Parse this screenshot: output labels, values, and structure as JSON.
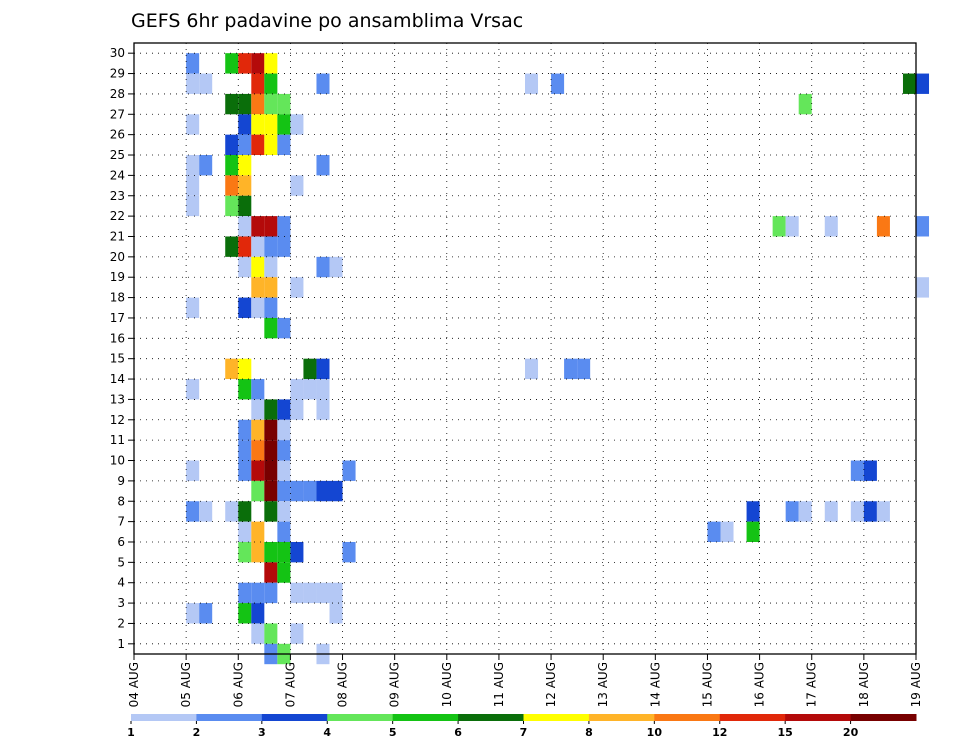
{
  "chart_data": {
    "type": "heatmap",
    "title": "GEFS 6hr padavine po ansamblima Vrsac",
    "xlabel": "",
    "ylabel": "",
    "x_tick_labels": [
      "04 AUG",
      "05 AUG",
      "06 AUG",
      "07 AUG",
      "08 AUG",
      "09 AUG",
      "10 AUG",
      "11 AUG",
      "12 AUG",
      "13 AUG",
      "14 AUG",
      "15 AUG",
      "16 AUG",
      "17 AUG",
      "18 AUG",
      "19 AUG"
    ],
    "x_unit": "6-hour step (4 per day)",
    "xlim_steps": [
      0,
      60
    ],
    "ylim": [
      0,
      30
    ],
    "y_ticks": [
      1,
      2,
      3,
      4,
      5,
      6,
      7,
      8,
      9,
      10,
      11,
      12,
      13,
      14,
      15,
      16,
      17,
      18,
      19,
      20,
      21,
      22,
      23,
      24,
      25,
      26,
      27,
      28,
      29,
      30
    ],
    "grid": true,
    "colorbar": {
      "position": "bottom",
      "labels": [
        "1",
        "2",
        "3",
        "4",
        "5",
        "6",
        "7",
        "8",
        "10",
        "12",
        "15",
        "20"
      ],
      "colors": [
        "#b4c8f5",
        "#5a8cf0",
        "#1446d2",
        "#64e65a",
        "#14c314",
        "#0a6e0a",
        "#ffff00",
        "#ffb428",
        "#fa7814",
        "#e1280a",
        "#b40a0a",
        "#780000"
      ]
    },
    "cells": [
      {
        "member": 30,
        "cells": [
          [
            4,
            1
          ],
          [
            7,
            4
          ],
          [
            8,
            9
          ],
          [
            9,
            10
          ],
          [
            10,
            6
          ]
        ]
      },
      {
        "member": 29,
        "cells": [
          [
            4,
            0
          ],
          [
            5,
            0
          ],
          [
            9,
            9
          ],
          [
            10,
            4
          ],
          [
            14,
            1
          ],
          [
            30,
            0
          ],
          [
            32,
            1
          ],
          [
            59,
            5
          ],
          [
            60,
            2
          ]
        ]
      },
      {
        "member": 28,
        "cells": [
          [
            7,
            5
          ],
          [
            8,
            5
          ],
          [
            9,
            8
          ],
          [
            10,
            3
          ],
          [
            11,
            3
          ],
          [
            51,
            3
          ]
        ]
      },
      {
        "member": 27,
        "cells": [
          [
            4,
            0
          ],
          [
            8,
            2
          ],
          [
            9,
            6
          ],
          [
            10,
            6
          ],
          [
            11,
            4
          ],
          [
            12,
            0
          ]
        ]
      },
      {
        "member": 26,
        "cells": [
          [
            7,
            2
          ],
          [
            8,
            1
          ],
          [
            9,
            9
          ],
          [
            10,
            6
          ],
          [
            11,
            1
          ]
        ]
      },
      {
        "member": 25,
        "cells": [
          [
            4,
            0
          ],
          [
            5,
            1
          ],
          [
            7,
            4
          ],
          [
            8,
            6
          ],
          [
            14,
            1
          ]
        ]
      },
      {
        "member": 24,
        "cells": [
          [
            4,
            0
          ],
          [
            7,
            8
          ],
          [
            8,
            7
          ],
          [
            12,
            0
          ]
        ]
      },
      {
        "member": 23,
        "cells": [
          [
            4,
            0
          ],
          [
            7,
            3
          ],
          [
            8,
            5
          ]
        ]
      },
      {
        "member": 22,
        "cells": [
          [
            8,
            0
          ],
          [
            9,
            10
          ],
          [
            10,
            10
          ],
          [
            11,
            1
          ],
          [
            49,
            3
          ],
          [
            50,
            0
          ],
          [
            53,
            0
          ],
          [
            57,
            8
          ],
          [
            60,
            1
          ]
        ]
      },
      {
        "member": 21,
        "cells": [
          [
            7,
            5
          ],
          [
            8,
            9
          ],
          [
            9,
            0
          ],
          [
            10,
            1
          ],
          [
            11,
            1
          ]
        ]
      },
      {
        "member": 20,
        "cells": [
          [
            8,
            0
          ],
          [
            9,
            6
          ],
          [
            10,
            0
          ],
          [
            14,
            1
          ],
          [
            15,
            0
          ]
        ]
      },
      {
        "member": 19,
        "cells": [
          [
            9,
            7
          ],
          [
            10,
            7
          ],
          [
            12,
            0
          ],
          [
            60,
            0
          ]
        ]
      },
      {
        "member": 18,
        "cells": [
          [
            4,
            0
          ],
          [
            8,
            2
          ],
          [
            9,
            0
          ],
          [
            10,
            1
          ]
        ]
      },
      {
        "member": 17,
        "cells": [
          [
            10,
            4
          ],
          [
            11,
            1
          ]
        ]
      },
      {
        "member": 16,
        "cells": []
      },
      {
        "member": 15,
        "cells": [
          [
            7,
            7
          ],
          [
            8,
            6
          ],
          [
            13,
            5
          ],
          [
            14,
            2
          ],
          [
            30,
            0
          ],
          [
            33,
            1
          ],
          [
            34,
            1
          ]
        ]
      },
      {
        "member": 14,
        "cells": [
          [
            4,
            0
          ],
          [
            8,
            4
          ],
          [
            9,
            1
          ],
          [
            12,
            0
          ],
          [
            13,
            0
          ],
          [
            14,
            0
          ]
        ]
      },
      {
        "member": 13,
        "cells": [
          [
            9,
            0
          ],
          [
            10,
            5
          ],
          [
            11,
            2
          ],
          [
            12,
            0
          ],
          [
            14,
            0
          ]
        ]
      },
      {
        "member": 12,
        "cells": [
          [
            8,
            1
          ],
          [
            9,
            7
          ],
          [
            10,
            11
          ],
          [
            11,
            0
          ]
        ]
      },
      {
        "member": 11,
        "cells": [
          [
            8,
            1
          ],
          [
            9,
            8
          ],
          [
            10,
            11
          ],
          [
            11,
            1
          ]
        ]
      },
      {
        "member": 10,
        "cells": [
          [
            4,
            0
          ],
          [
            8,
            1
          ],
          [
            9,
            10
          ],
          [
            10,
            11
          ],
          [
            11,
            0
          ],
          [
            16,
            1
          ],
          [
            55,
            1
          ],
          [
            56,
            2
          ]
        ]
      },
      {
        "member": 9,
        "cells": [
          [
            9,
            3
          ],
          [
            10,
            11
          ],
          [
            11,
            1
          ],
          [
            12,
            1
          ],
          [
            13,
            1
          ],
          [
            14,
            2
          ],
          [
            15,
            2
          ]
        ]
      },
      {
        "member": 8,
        "cells": [
          [
            4,
            1
          ],
          [
            5,
            0
          ],
          [
            7,
            0
          ],
          [
            8,
            5
          ],
          [
            10,
            5
          ],
          [
            11,
            0
          ],
          [
            47,
            2
          ],
          [
            50,
            1
          ],
          [
            51,
            0
          ],
          [
            53,
            0
          ],
          [
            55,
            0
          ],
          [
            56,
            2
          ],
          [
            57,
            0
          ]
        ]
      },
      {
        "member": 7,
        "cells": [
          [
            8,
            0
          ],
          [
            9,
            7
          ],
          [
            11,
            1
          ],
          [
            44,
            1
          ],
          [
            45,
            0
          ],
          [
            47,
            4
          ]
        ]
      },
      {
        "member": 6,
        "cells": [
          [
            8,
            3
          ],
          [
            9,
            7
          ],
          [
            10,
            4
          ],
          [
            11,
            4
          ],
          [
            12,
            2
          ],
          [
            16,
            1
          ]
        ]
      },
      {
        "member": 5,
        "cells": [
          [
            10,
            10
          ],
          [
            11,
            4
          ]
        ]
      },
      {
        "member": 4,
        "cells": [
          [
            8,
            1
          ],
          [
            9,
            1
          ],
          [
            10,
            1
          ],
          [
            12,
            0
          ],
          [
            13,
            0
          ],
          [
            14,
            0
          ],
          [
            15,
            0
          ]
        ]
      },
      {
        "member": 3,
        "cells": [
          [
            4,
            0
          ],
          [
            5,
            1
          ],
          [
            8,
            4
          ],
          [
            9,
            2
          ],
          [
            15,
            0
          ]
        ]
      },
      {
        "member": 2,
        "cells": [
          [
            9,
            0
          ],
          [
            10,
            3
          ],
          [
            12,
            0
          ]
        ]
      },
      {
        "member": 1,
        "cells": [
          [
            10,
            1
          ],
          [
            11,
            3
          ],
          [
            14,
            0
          ]
        ]
      }
    ]
  }
}
